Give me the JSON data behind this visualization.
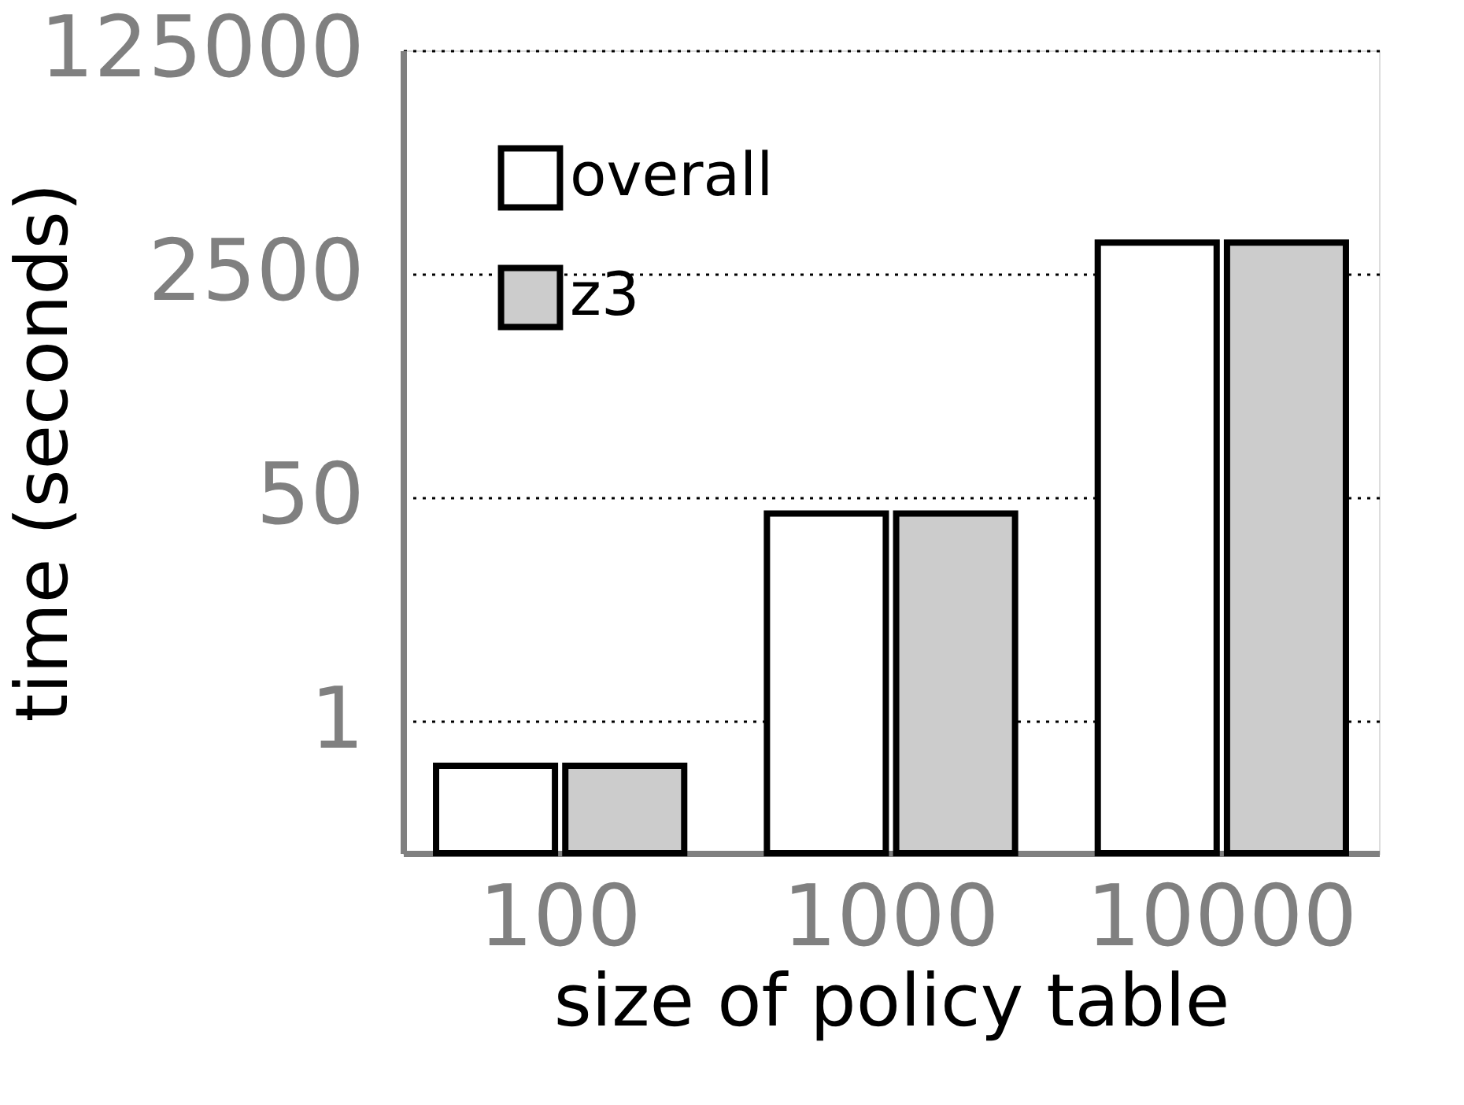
{
  "chart_data": {
    "type": "bar",
    "xlabel": "size of policy table",
    "ylabel": "time (seconds)",
    "categories": [
      "100",
      "1000",
      "10000"
    ],
    "series": [
      {
        "name": "overall",
        "color": "#ffffff",
        "values": [
          0.46,
          38,
          4340
        ]
      },
      {
        "name": "z3",
        "color": "#cccccc",
        "values": [
          0.46,
          38,
          4340
        ]
      }
    ],
    "log": "y",
    "ylim": [
      0.1,
      125000
    ],
    "yticks": [
      1,
      50,
      2500,
      125000
    ],
    "grid": "y",
    "legend": "top left"
  }
}
